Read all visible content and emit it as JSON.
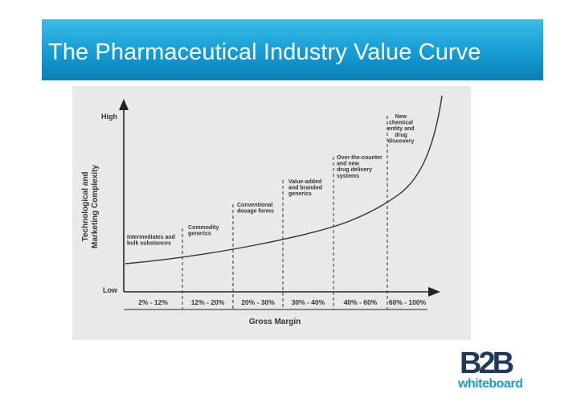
{
  "slide": {
    "title": "The Pharmaceutical Industry Value Curve"
  },
  "diagram": {
    "y_axis_label_line1": "Technological and",
    "y_axis_label_line2": "Marketing Complexity",
    "y_high": "High",
    "y_low": "Low",
    "x_axis_label": "Gross Margin",
    "segments": [
      {
        "range": "2% - 12%",
        "label_lines": [
          "Intermediates and",
          "bulk substances"
        ]
      },
      {
        "range": "12% - 20%",
        "label_lines": [
          "Commodity",
          "generics"
        ]
      },
      {
        "range": "20% - 30%",
        "label_lines": [
          "Conventional",
          "dosage forms"
        ]
      },
      {
        "range": "30% - 40%",
        "label_lines": [
          "Value-added",
          "and branded",
          "generics"
        ]
      },
      {
        "range": "40% - 60%",
        "label_lines": [
          "Over-the-counter",
          "and new",
          "drug delivery",
          "systems"
        ]
      },
      {
        "range": "60% - 100%",
        "label_lines": [
          "New",
          "chemical",
          "entity and",
          "drug",
          "discovery"
        ]
      }
    ]
  },
  "logo": {
    "mark": "B2B",
    "wordmark": "whiteboard",
    "colors": {
      "dark": "#1f3a5a",
      "accent": "#1a9ad6"
    }
  },
  "colors": {
    "title_bar": "#159bd3",
    "panel": "#e9e9e9",
    "ink": "#222222"
  }
}
